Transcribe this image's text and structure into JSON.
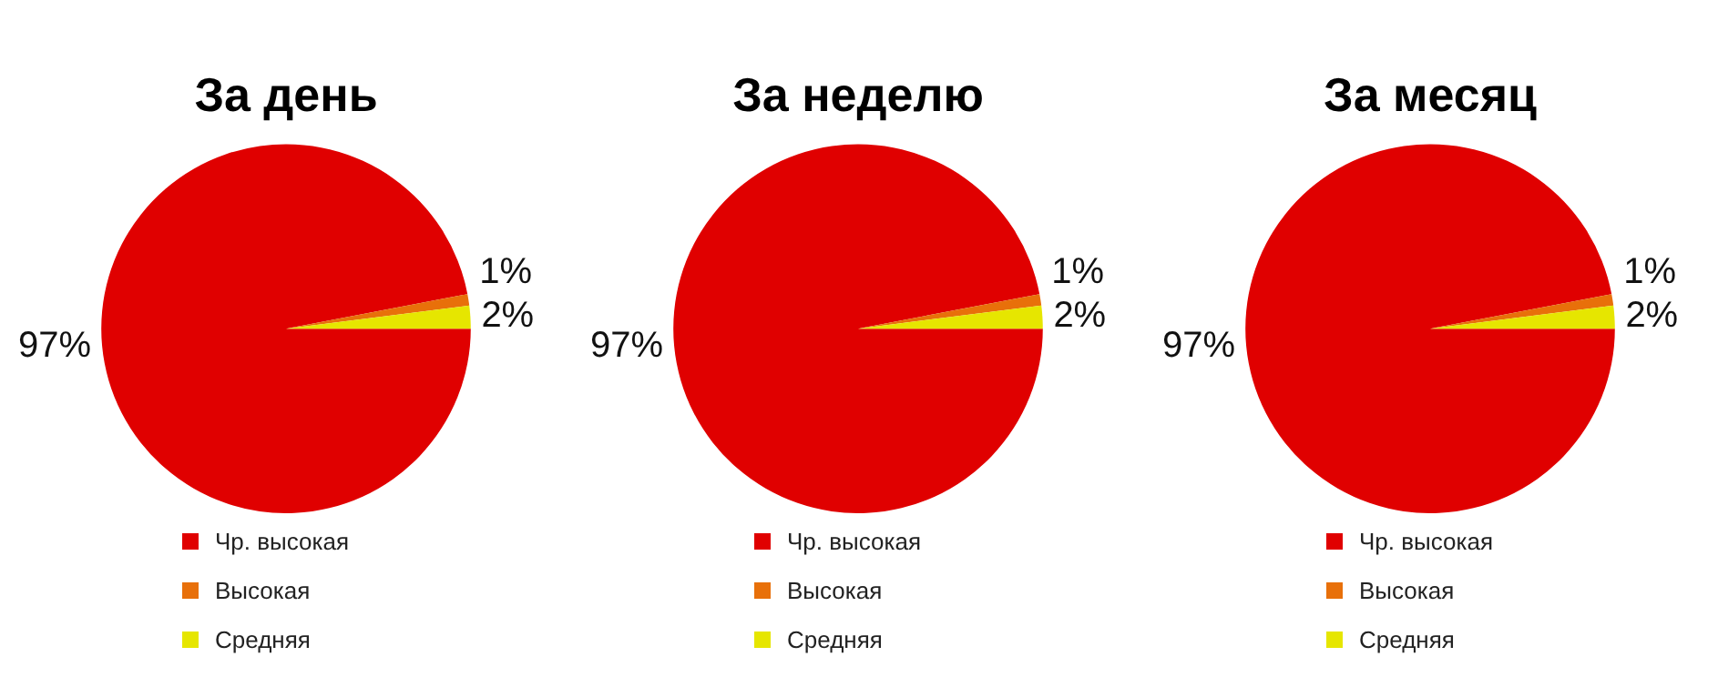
{
  "chart_data": [
    {
      "type": "pie",
      "title": "За день",
      "categories": [
        "Чр. высокая",
        "Высокая",
        "Средняя"
      ],
      "values": [
        97,
        1,
        2
      ],
      "value_labels": [
        "97%",
        "1%",
        "2%"
      ],
      "colors": [
        "#e00000",
        "#e8700a",
        "#e6e600"
      ],
      "legend": "bottom"
    },
    {
      "type": "pie",
      "title": "За неделю",
      "categories": [
        "Чр. высокая",
        "Высокая",
        "Средняя"
      ],
      "values": [
        97,
        1,
        2
      ],
      "value_labels": [
        "97%",
        "1%",
        "2%"
      ],
      "colors": [
        "#e00000",
        "#e8700a",
        "#e6e600"
      ],
      "legend": "bottom"
    },
    {
      "type": "pie",
      "title": "За месяц",
      "categories": [
        "Чр. высокая",
        "Высокая",
        "Средняя"
      ],
      "values": [
        97,
        1,
        2
      ],
      "value_labels": [
        "97%",
        "1%",
        "2%"
      ],
      "colors": [
        "#e00000",
        "#e8700a",
        "#e6e600"
      ],
      "legend": "bottom"
    }
  ]
}
